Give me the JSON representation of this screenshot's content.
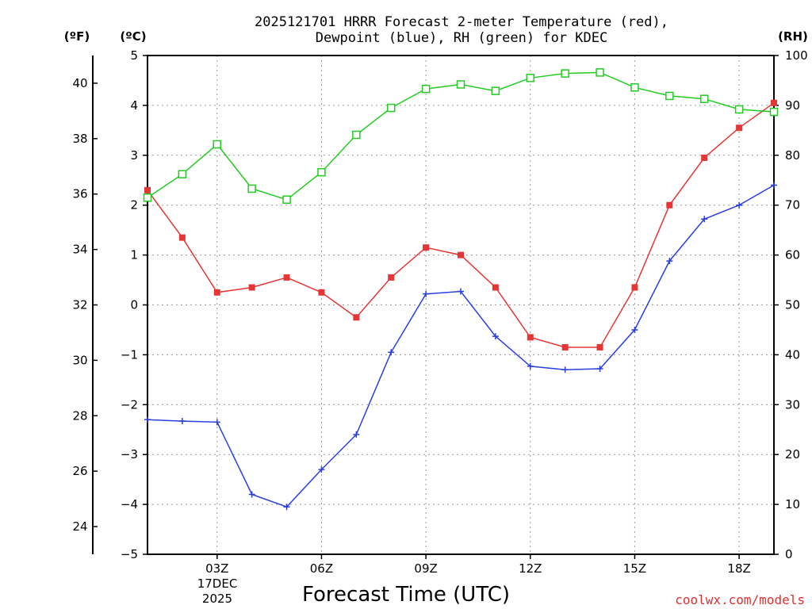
{
  "chart_data": {
    "type": "line",
    "title_line1": "2025121701 HRRR Forecast 2-meter Temperature (red),",
    "title_line2": "Dewpoint (blue), RH (green) for KDEC",
    "xlabel": "Forecast Time (UTC)",
    "date_label_1": "17DEC",
    "date_label_2": "2025",
    "credit": "coolwx.com/models",
    "unit_f": "(ºF)",
    "unit_c": "(ºC)",
    "unit_rh": "(RH)",
    "x_hours": [
      1,
      2,
      3,
      4,
      5,
      6,
      7,
      8,
      9,
      10,
      11,
      12,
      13,
      14,
      15,
      16,
      17,
      18,
      19
    ],
    "x_range": [
      1,
      19
    ],
    "x_ticks": [
      {
        "hour": 3,
        "label": "03Z"
      },
      {
        "hour": 6,
        "label": "06Z"
      },
      {
        "hour": 9,
        "label": "09Z"
      },
      {
        "hour": 12,
        "label": "12Z"
      },
      {
        "hour": 15,
        "label": "15Z"
      },
      {
        "hour": 18,
        "label": "18Z"
      }
    ],
    "celsius_axis": {
      "range": [
        -5,
        5
      ],
      "ticks": [
        "5",
        "4",
        "3",
        "2",
        "1",
        "0",
        "−1",
        "−2",
        "−3",
        "−4",
        "−5"
      ]
    },
    "fahrenheit_axis": {
      "ticks": [
        "40",
        "38",
        "36",
        "34",
        "32",
        "30",
        "28",
        "26",
        "24"
      ]
    },
    "rh_axis": {
      "range": [
        0,
        100
      ],
      "ticks": [
        "100",
        "90",
        "80",
        "70",
        "60",
        "50",
        "40",
        "30",
        "20",
        "10",
        "0"
      ]
    },
    "series": [
      {
        "name": "Temperature",
        "unit": "C",
        "color": "#e53535",
        "values": [
          2.3,
          1.35,
          0.25,
          0.35,
          0.55,
          0.25,
          -0.25,
          0.55,
          1.15,
          1.0,
          0.35,
          -0.65,
          -0.85,
          -0.85,
          0.35,
          2.0,
          2.95,
          3.55,
          4.05
        ]
      },
      {
        "name": "Dewpoint",
        "unit": "C",
        "color": "#2a3fe0",
        "values": [
          -2.3,
          -2.33,
          -2.35,
          -3.8,
          -4.05,
          -3.3,
          -2.6,
          -0.95,
          0.22,
          0.27,
          -0.63,
          -1.23,
          -1.3,
          -1.28,
          -0.5,
          0.88,
          1.72,
          2.0,
          2.4
        ]
      },
      {
        "name": "RH",
        "unit": "%",
        "color": "#22cc22",
        "values": [
          71.5,
          76.2,
          82.2,
          73.3,
          71.1,
          76.6,
          84.1,
          89.5,
          93.3,
          94.2,
          92.9,
          95.5,
          96.4,
          96.6,
          93.6,
          91.9,
          91.3,
          89.2,
          88.7
        ]
      }
    ]
  }
}
